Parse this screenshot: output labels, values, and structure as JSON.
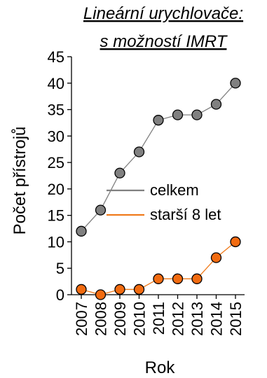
{
  "chart_data": {
    "type": "line",
    "title": [
      "Lineární urychlovače:",
      "s možností IMRT"
    ],
    "xlabel": "Rok",
    "ylabel": "Počet přístrojů",
    "x": [
      "2007",
      "2008",
      "2009",
      "2010",
      "2011",
      "2012",
      "2013",
      "2014",
      "2015"
    ],
    "yticks": [
      "0",
      "5",
      "10",
      "15",
      "20",
      "25",
      "30",
      "35",
      "40",
      "45"
    ],
    "ylim": [
      0,
      45
    ],
    "grid": false,
    "legend_position": "middle-right",
    "series": [
      {
        "name": "celkem",
        "values": [
          12,
          16,
          23,
          27,
          33,
          34,
          34,
          36,
          40
        ],
        "line_color": "#808080",
        "marker_color": "#808080"
      },
      {
        "name": "starší 8 let",
        "values": [
          1,
          0,
          1,
          1,
          3,
          3,
          3,
          7,
          10
        ],
        "line_color": "#f07b1c",
        "marker_color": "#f26b10"
      }
    ]
  }
}
